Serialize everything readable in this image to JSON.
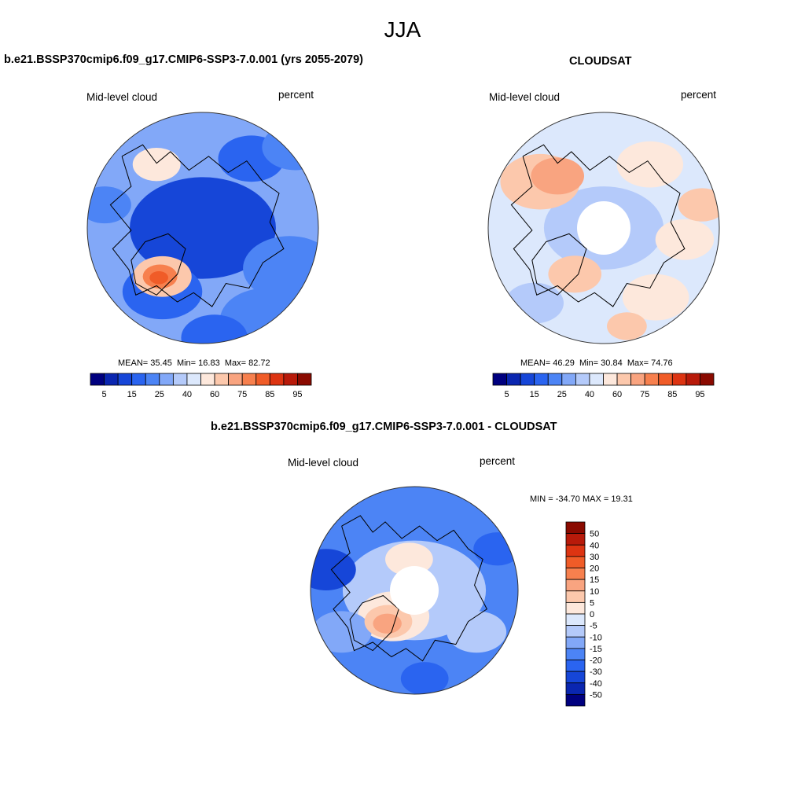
{
  "page_title": "JJA",
  "colors": {
    "seq_levels": [
      "#00007f",
      "#0a26b0",
      "#1646d8",
      "#2a64f0",
      "#4c84f5",
      "#82a8f8",
      "#b4cafa",
      "#dce8fc",
      "#fde8dc",
      "#fcc8ac",
      "#f9a480",
      "#f7804e",
      "#f05c28",
      "#dd3412",
      "#b81a0a",
      "#8a0a00"
    ],
    "diff_levels": [
      "#00007f",
      "#0a26b0",
      "#1646d8",
      "#2a64f0",
      "#4c84f5",
      "#82a8f8",
      "#b4cafa",
      "#dce8fc",
      "#fde8dc",
      "#fcc8ac",
      "#f9a480",
      "#f7804e",
      "#f05c28",
      "#dd3412",
      "#b81a0a",
      "#8a0a00"
    ]
  },
  "chart_data": [
    {
      "type": "heatmap",
      "projection": "north polar stereographic",
      "title": "b.e21.BSSP370cmip6.f09_g17.CMIP6-SSP3-7.0.001 (yrs 2055-2079)",
      "left_label": "Mid-level cloud",
      "right_label": "percent",
      "stats": {
        "mean_label": "MEAN=",
        "mean": "35.45",
        "min_label": "Min=",
        "min": "16.83",
        "max_label": "Max=",
        "max": "82.72"
      },
      "colorbar": {
        "orientation": "horizontal",
        "tick_labels": [
          "5",
          "15",
          "25",
          "40",
          "60",
          "75",
          "85",
          "95"
        ]
      }
    },
    {
      "type": "heatmap",
      "projection": "north polar stereographic",
      "title": "CLOUDSAT",
      "left_label": "Mid-level cloud",
      "right_label": "percent",
      "stats": {
        "mean_label": "MEAN=",
        "mean": "46.29",
        "min_label": "Min=",
        "min": "30.84",
        "max_label": "Max=",
        "max": "74.76"
      },
      "colorbar": {
        "orientation": "horizontal",
        "tick_labels": [
          "5",
          "15",
          "25",
          "40",
          "60",
          "75",
          "85",
          "95"
        ]
      }
    },
    {
      "type": "heatmap",
      "projection": "north polar stereographic",
      "title": "b.e21.BSSP370cmip6.f09_g17.CMIP6-SSP3-7.0.001 - CLOUDSAT",
      "left_label": "Mid-level cloud",
      "right_label": "percent",
      "stats_text": "MIN = -34.70 MAX =  19.31",
      "colorbar": {
        "orientation": "vertical",
        "tick_labels": [
          "50",
          "40",
          "30",
          "20",
          "15",
          "10",
          "5",
          "0",
          "-5",
          "-10",
          "-15",
          "-20",
          "-30",
          "-40",
          "-50"
        ]
      }
    }
  ]
}
